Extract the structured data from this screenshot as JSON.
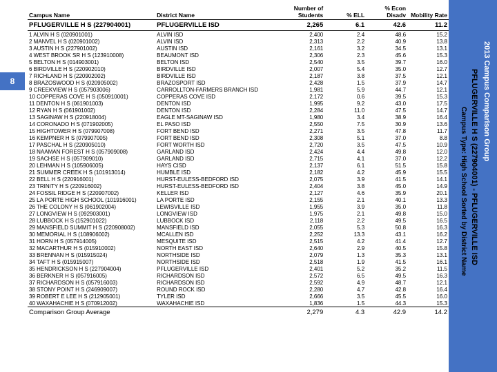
{
  "page_number": "8",
  "sidebar": {
    "line1": "2013 Campus Comparison Group",
    "line2": "PFLUGERVILLE H S (227904001) - PFLUGERVILLE ISD",
    "line3": "Campus Type: High School Sorted by District Name"
  },
  "headers": {
    "campus": "Campus Name",
    "district": "District Name",
    "students": "Number of Students",
    "ell": "% ELL",
    "econ": "% Econ Disadv",
    "mobility": "Mobility Rate"
  },
  "highlight": {
    "campus": "PFLUGERVILLE H S (227904001)",
    "district": "PFLUGERVILLE ISD",
    "students": "2,265",
    "ell": "6.1",
    "econ": "42.6",
    "mobility": "11.2"
  },
  "rows": [
    {
      "n": "1",
      "campus": "ALVIN H S (020901001)",
      "district": "ALVIN ISD",
      "students": "2,400",
      "ell": "2.4",
      "econ": "48.6",
      "mobility": "15.2"
    },
    {
      "n": "2",
      "campus": "MANVEL H S (020901002)",
      "district": "ALVIN ISD",
      "students": "2,313",
      "ell": "2.2",
      "econ": "40.9",
      "mobility": "13.8"
    },
    {
      "n": "3",
      "campus": "AUSTIN H S (227901002)",
      "district": "AUSTIN ISD",
      "students": "2,161",
      "ell": "3.2",
      "econ": "34.5",
      "mobility": "13.1"
    },
    {
      "n": "4",
      "campus": "WEST BROOK SR H S (123910008)",
      "district": "BEAUMONT ISD",
      "students": "2,306",
      "ell": "2.3",
      "econ": "45.6",
      "mobility": "15.3"
    },
    {
      "n": "5",
      "campus": "BELTON H S (014903001)",
      "district": "BELTON ISD",
      "students": "2,540",
      "ell": "3.5",
      "econ": "39.7",
      "mobility": "16.0"
    },
    {
      "n": "6",
      "campus": "BIRDVILLE H S (220902010)",
      "district": "BIRDVILLE ISD",
      "students": "2,007",
      "ell": "5.4",
      "econ": "35.0",
      "mobility": "12.7"
    },
    {
      "n": "7",
      "campus": "RICHLAND H S (220902002)",
      "district": "BIRDVILLE ISD",
      "students": "2,187",
      "ell": "3.8",
      "econ": "37.5",
      "mobility": "12.1"
    },
    {
      "n": "8",
      "campus": "BRAZOSWOOD H S (020905002)",
      "district": "BRAZOSPORT ISD",
      "students": "2,428",
      "ell": "1.5",
      "econ": "37.9",
      "mobility": "14.7"
    },
    {
      "n": "9",
      "campus": "CREEKVIEW H S (057903006)",
      "district": "CARROLLTON-FARMERS BRANCH ISD",
      "students": "1,981",
      "ell": "5.9",
      "econ": "44.7",
      "mobility": "12.1"
    },
    {
      "n": "10",
      "campus": "COPPERAS COVE H S (050910001)",
      "district": "COPPERAS COVE ISD",
      "students": "2,172",
      "ell": "0.6",
      "econ": "39.5",
      "mobility": "15.3"
    },
    {
      "n": "11",
      "campus": "DENTON H S (061901003)",
      "district": "DENTON ISD",
      "students": "1,995",
      "ell": "9.2",
      "econ": "43.0",
      "mobility": "17.5"
    },
    {
      "n": "12",
      "campus": "RYAN H S (061901002)",
      "district": "DENTON ISD",
      "students": "2,284",
      "ell": "11.0",
      "econ": "47.5",
      "mobility": "14.7"
    },
    {
      "n": "13",
      "campus": "SAGINAW H S (220918004)",
      "district": "EAGLE MT-SAGINAW ISD",
      "students": "1,980",
      "ell": "3.4",
      "econ": "38.9",
      "mobility": "16.4"
    },
    {
      "n": "14",
      "campus": "CORONADO H S (071902005)",
      "district": "EL PASO ISD",
      "students": "2,550",
      "ell": "7.5",
      "econ": "30.9",
      "mobility": "13.6"
    },
    {
      "n": "15",
      "campus": "HIGHTOWER H S (079907008)",
      "district": "FORT BEND ISD",
      "students": "2,271",
      "ell": "3.5",
      "econ": "47.8",
      "mobility": "11.7"
    },
    {
      "n": "16",
      "campus": "KEMPNER H S (079907005)",
      "district": "FORT BEND ISD",
      "students": "2,308",
      "ell": "5.1",
      "econ": "37.0",
      "mobility": "8.8"
    },
    {
      "n": "17",
      "campus": "PASCHAL H S (220905010)",
      "district": "FORT WORTH ISD",
      "students": "2,720",
      "ell": "3.5",
      "econ": "47.5",
      "mobility": "10.9"
    },
    {
      "n": "18",
      "campus": "NAAMAN FOREST H S (057909008)",
      "district": "GARLAND ISD",
      "students": "2,424",
      "ell": "4.4",
      "econ": "49.8",
      "mobility": "12.0"
    },
    {
      "n": "19",
      "campus": "SACHSE H S (057909010)",
      "district": "GARLAND ISD",
      "students": "2,715",
      "ell": "4.1",
      "econ": "37.0",
      "mobility": "12.2"
    },
    {
      "n": "20",
      "campus": "LEHMAN H S (105906005)",
      "district": "HAYS CISD",
      "students": "2,137",
      "ell": "6.1",
      "econ": "51.5",
      "mobility": "15.8"
    },
    {
      "n": "21",
      "campus": "SUMMER CREEK H S (101913014)",
      "district": "HUMBLE ISD",
      "students": "2,182",
      "ell": "4.2",
      "econ": "45.9",
      "mobility": "15.5"
    },
    {
      "n": "22",
      "campus": "BELL H S (220916001)",
      "district": "HURST-EULESS-BEDFORD ISD",
      "students": "2,075",
      "ell": "3.9",
      "econ": "41.5",
      "mobility": "14.1"
    },
    {
      "n": "23",
      "campus": "TRINITY H S (220916002)",
      "district": "HURST-EULESS-BEDFORD ISD",
      "students": "2,404",
      "ell": "3.8",
      "econ": "45.0",
      "mobility": "14.9"
    },
    {
      "n": "24",
      "campus": "FOSSIL RIDGE H S (220907002)",
      "district": "KELLER ISD",
      "students": "2,127",
      "ell": "4.6",
      "econ": "35.9",
      "mobility": "20.1"
    },
    {
      "n": "25",
      "campus": "LA PORTE HIGH SCHOOL (101916001)",
      "district": "LA PORTE ISD",
      "students": "2,155",
      "ell": "2.1",
      "econ": "40.1",
      "mobility": "13.3"
    },
    {
      "n": "26",
      "campus": "THE COLONY H S (061902004)",
      "district": "LEWISVILLE ISD",
      "students": "1,955",
      "ell": "3.9",
      "econ": "35.0",
      "mobility": "11.8"
    },
    {
      "n": "27",
      "campus": "LONGVIEW H S (092903001)",
      "district": "LONGVIEW ISD",
      "students": "1,975",
      "ell": "2.1",
      "econ": "49.8",
      "mobility": "15.0"
    },
    {
      "n": "28",
      "campus": "LUBBOCK H S (152901022)",
      "district": "LUBBOCK ISD",
      "students": "2,118",
      "ell": "2.2",
      "econ": "49.5",
      "mobility": "16.5"
    },
    {
      "n": "29",
      "campus": "MANSFIELD SUMMIT H S (220908002)",
      "district": "MANSFIELD ISD",
      "students": "2,055",
      "ell": "5.3",
      "econ": "50.8",
      "mobility": "16.3"
    },
    {
      "n": "30",
      "campus": "MEMORIAL H S (108906002)",
      "district": "MCALLEN ISD",
      "students": "2,252",
      "ell": "13.3",
      "econ": "43.1",
      "mobility": "16.2"
    },
    {
      "n": "31",
      "campus": "HORN H S (057914005)",
      "district": "MESQUITE ISD",
      "students": "2,515",
      "ell": "4.2",
      "econ": "41.4",
      "mobility": "12.7"
    },
    {
      "n": "32",
      "campus": "MACARTHUR H S (015910002)",
      "district": "NORTH EAST ISD",
      "students": "2,640",
      "ell": "2.9",
      "econ": "40.5",
      "mobility": "15.8"
    },
    {
      "n": "33",
      "campus": "BRENNAN H S (015915024)",
      "district": "NORTHSIDE ISD",
      "students": "2,079",
      "ell": "1.3",
      "econ": "35.3",
      "mobility": "13.1"
    },
    {
      "n": "34",
      "campus": "TAFT H S (015915007)",
      "district": "NORTHSIDE ISD",
      "students": "2,518",
      "ell": "1.9",
      "econ": "41.5",
      "mobility": "16.1"
    },
    {
      "n": "35",
      "campus": "HENDRICKSON H S (227904004)",
      "district": "PFLUGERVILLE ISD",
      "students": "2,401",
      "ell": "5.2",
      "econ": "35.2",
      "mobility": "11.5"
    },
    {
      "n": "36",
      "campus": "BERKNER H S (057916005)",
      "district": "RICHARDSON ISD",
      "students": "2,572",
      "ell": "6.5",
      "econ": "49.5",
      "mobility": "16.3"
    },
    {
      "n": "37",
      "campus": "RICHARDSON H S (057916003)",
      "district": "RICHARDSON ISD",
      "students": "2,592",
      "ell": "4.9",
      "econ": "48.7",
      "mobility": "12.1"
    },
    {
      "n": "38",
      "campus": "STONY POINT H S (246909007)",
      "district": "ROUND ROCK ISD",
      "students": "2,280",
      "ell": "4.7",
      "econ": "42.8",
      "mobility": "16.4"
    },
    {
      "n": "39",
      "campus": "ROBERT E LEE H S (212905001)",
      "district": "TYLER ISD",
      "students": "2,666",
      "ell": "3.5",
      "econ": "45.5",
      "mobility": "16.0"
    },
    {
      "n": "40",
      "campus": "WAXAHACHIE H S (070912002)",
      "district": "WAXAHACHIE ISD",
      "students": "1,836",
      "ell": "1.5",
      "econ": "44.3",
      "mobility": "15.3"
    }
  ],
  "average": {
    "label": "Comparison Group Average",
    "students": "2,279",
    "ell": "4.3",
    "econ": "42.9",
    "mobility": "14.2"
  }
}
